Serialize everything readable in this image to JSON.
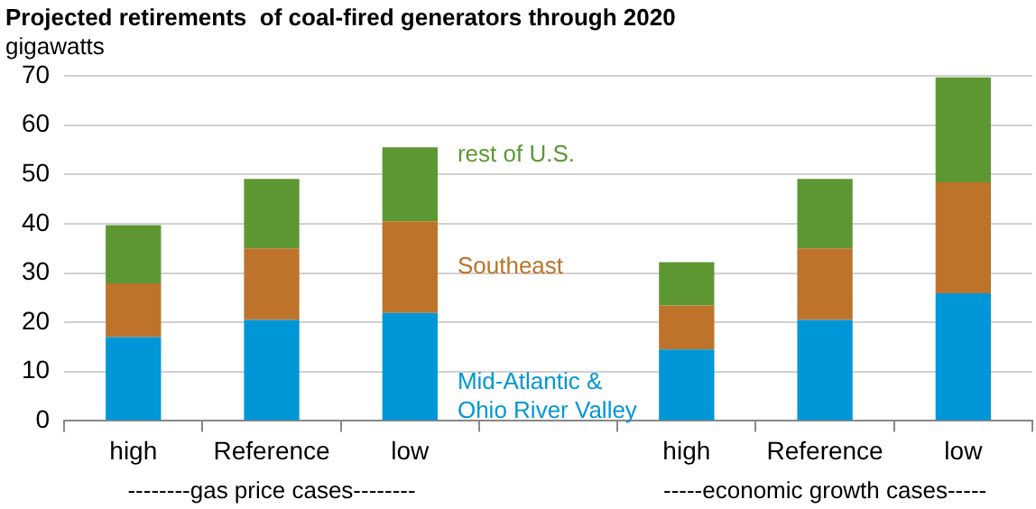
{
  "chart_data": {
    "type": "bar",
    "stacked": true,
    "title": "Projected retirements  of coal-fired generators through 2020",
    "ylabel": "gigawatts",
    "categories": [
      "high",
      "Reference",
      "low",
      null,
      "high",
      "Reference",
      "low"
    ],
    "series": [
      {
        "name": "Mid-Atlantic &\nOhio River Valley",
        "color": "#0096d7",
        "values": [
          17,
          20.5,
          21.9,
          null,
          14.5,
          20.5,
          25.9
        ]
      },
      {
        "name": "Southeast",
        "color": "#bd732a",
        "values": [
          10.9,
          14.5,
          18.6,
          null,
          8.9,
          14.5,
          22.5
        ]
      },
      {
        "name": "rest of U.S.",
        "color": "#5d9732",
        "values": [
          11.8,
          14.1,
          15,
          null,
          8.8,
          14.1,
          21.3
        ]
      }
    ],
    "ylim": [
      0,
      70
    ],
    "yticks": [
      0,
      10,
      20,
      30,
      40,
      50,
      60,
      70
    ],
    "grid": "y",
    "legend": false,
    "annotations": [
      "--------gas price cases--------",
      "-----economic growth cases-----"
    ]
  }
}
